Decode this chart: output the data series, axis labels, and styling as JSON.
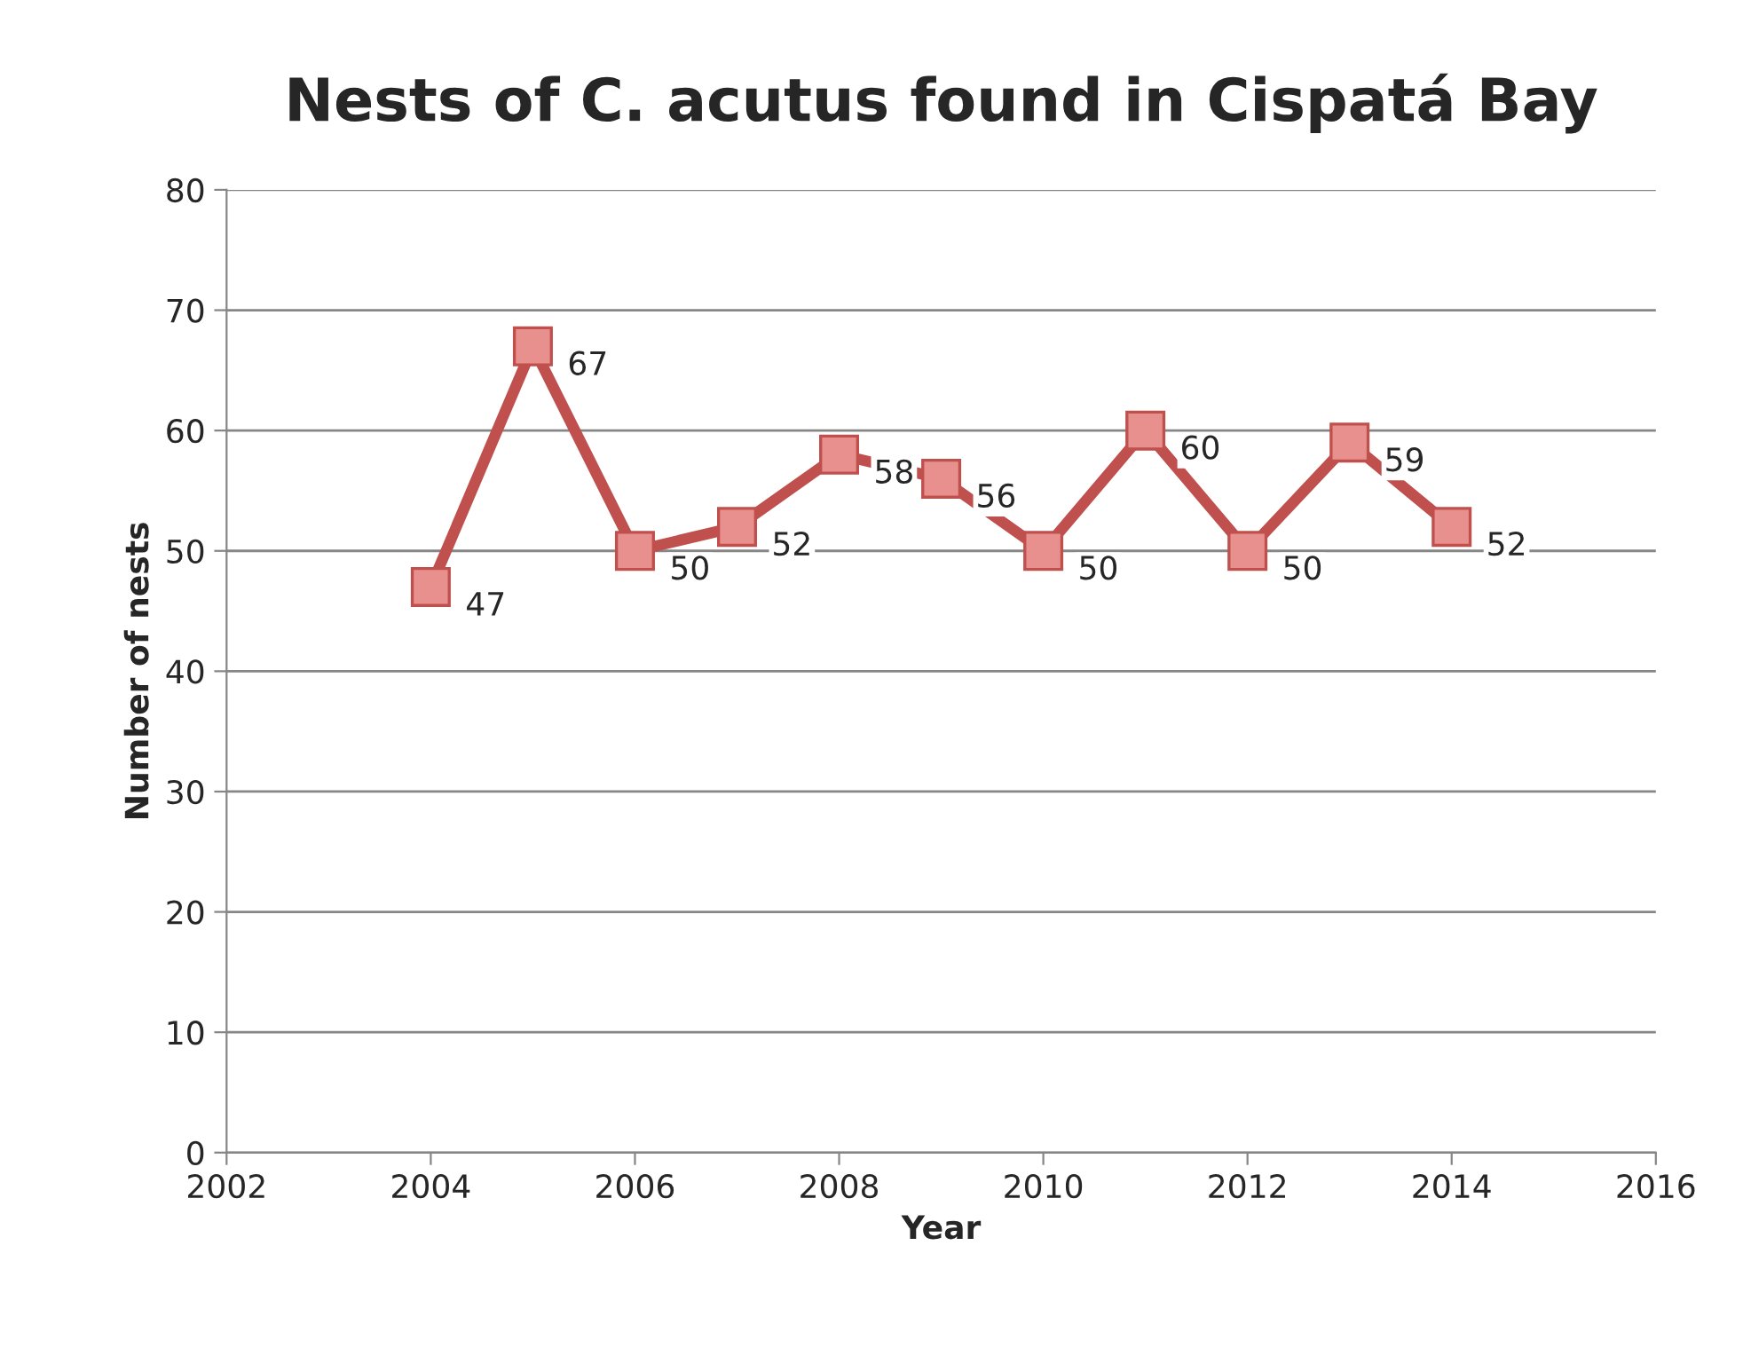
{
  "chart_data": {
    "type": "line",
    "title": "Nests of C. acutus found in Cispatá Bay",
    "xlabel": "Year",
    "ylabel": "Number of nests",
    "x": [
      2004,
      2005,
      2006,
      2007,
      2008,
      2009,
      2010,
      2011,
      2012,
      2013,
      2014
    ],
    "series": [
      {
        "color": "#c0504d",
        "values": [
          47,
          67,
          50,
          52,
          58,
          56,
          50,
          60,
          50,
          59,
          52
        ]
      }
    ],
    "xlim": [
      2002,
      2016
    ],
    "xticks": [
      2002,
      2004,
      2006,
      2008,
      2010,
      2012,
      2014,
      2016
    ],
    "ylim": [
      0,
      80
    ],
    "yticks": [
      0,
      10,
      20,
      30,
      40,
      50,
      60,
      70,
      80
    ],
    "grid": "y",
    "marker": "square",
    "line_style": "solid",
    "data_labels": true,
    "legend": false
  }
}
